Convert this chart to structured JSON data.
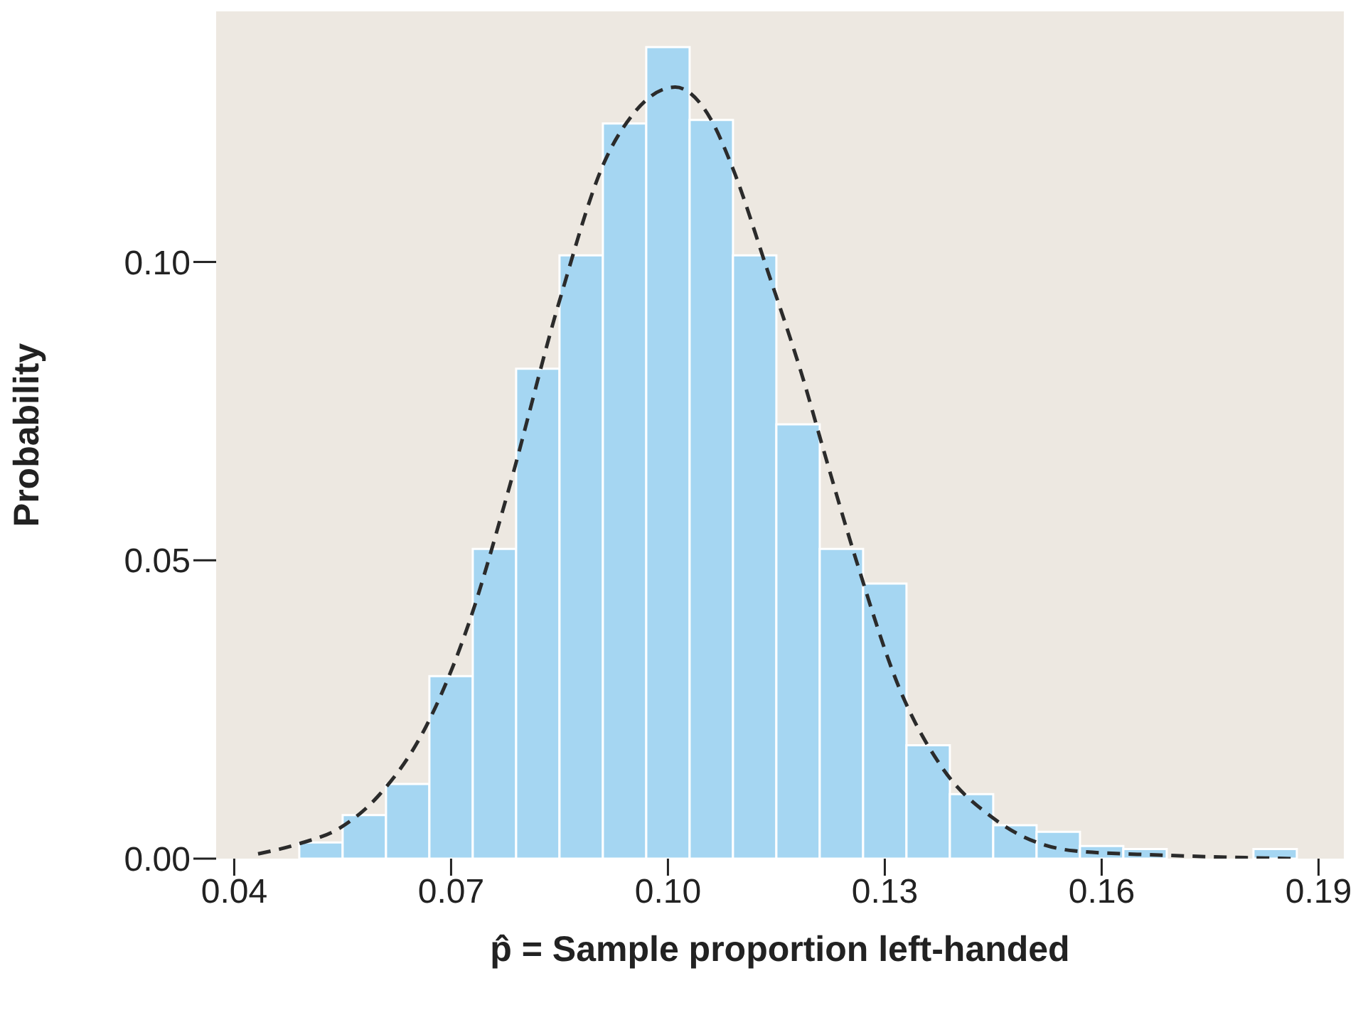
{
  "chart_data": {
    "type": "histogram",
    "xlabel": "p̂ = Sample proportion left-handed",
    "ylabel": "Probability",
    "bins": [
      0.049,
      0.055,
      0.061,
      0.067,
      0.073,
      0.079,
      0.085,
      0.091,
      0.097,
      0.103,
      0.109,
      0.115,
      0.121,
      0.127,
      0.133,
      0.139,
      0.145,
      0.151,
      0.157,
      0.163,
      0.169,
      0.175,
      0.181,
      0.187
    ],
    "values": [
      0.0027,
      0.0073,
      0.0125,
      0.0306,
      0.0519,
      0.0821,
      0.1011,
      0.1232,
      0.136,
      0.1238,
      0.1011,
      0.0728,
      0.0519,
      0.0461,
      0.019,
      0.0108,
      0.0056,
      0.0045,
      0.0021,
      0.0016,
      0,
      0,
      0.0016
    ],
    "color": "#a5d6f2",
    "series": [
      {
        "type": "line",
        "color": "#2b2b2b",
        "line_style": "dashed",
        "x": [
          0.0433,
          0.049,
          0.0547,
          0.06,
          0.0666,
          0.0725,
          0.0777,
          0.085,
          0.0913,
          0.0948,
          0.101,
          0.1058,
          0.109,
          0.1136,
          0.1189,
          0.1215,
          0.1261,
          0.132,
          0.1379,
          0.1451,
          0.1562,
          0.168,
          0.1866
        ],
        "values": [
          0.0008,
          0.0025,
          0.0052,
          0.0106,
          0.0223,
          0.0396,
          0.0607,
          0.0935,
          0.117,
          0.1242,
          0.1293,
          0.1242,
          0.1156,
          0.0992,
          0.0796,
          0.0686,
          0.0498,
          0.0286,
          0.0153,
          0.0067,
          0.0013,
          0.0006,
          0
        ]
      }
    ],
    "xlim": [
      0.0375,
      0.1935
    ],
    "ylim": [
      0,
      0.142
    ],
    "xticks": [
      {
        "value": 0.04,
        "label": "0.04"
      },
      {
        "value": 0.07,
        "label": "0.07"
      },
      {
        "value": 0.1,
        "label": "0.10"
      },
      {
        "value": 0.13,
        "label": "0.13"
      },
      {
        "value": 0.16,
        "label": "0.16"
      },
      {
        "value": 0.19,
        "label": "0.19"
      }
    ],
    "yticks": [
      {
        "value": 0,
        "label": "0.00"
      },
      {
        "value": 0.05,
        "label": "0.05"
      },
      {
        "value": 0.1,
        "label": "0.10"
      }
    ],
    "grid": false
  }
}
